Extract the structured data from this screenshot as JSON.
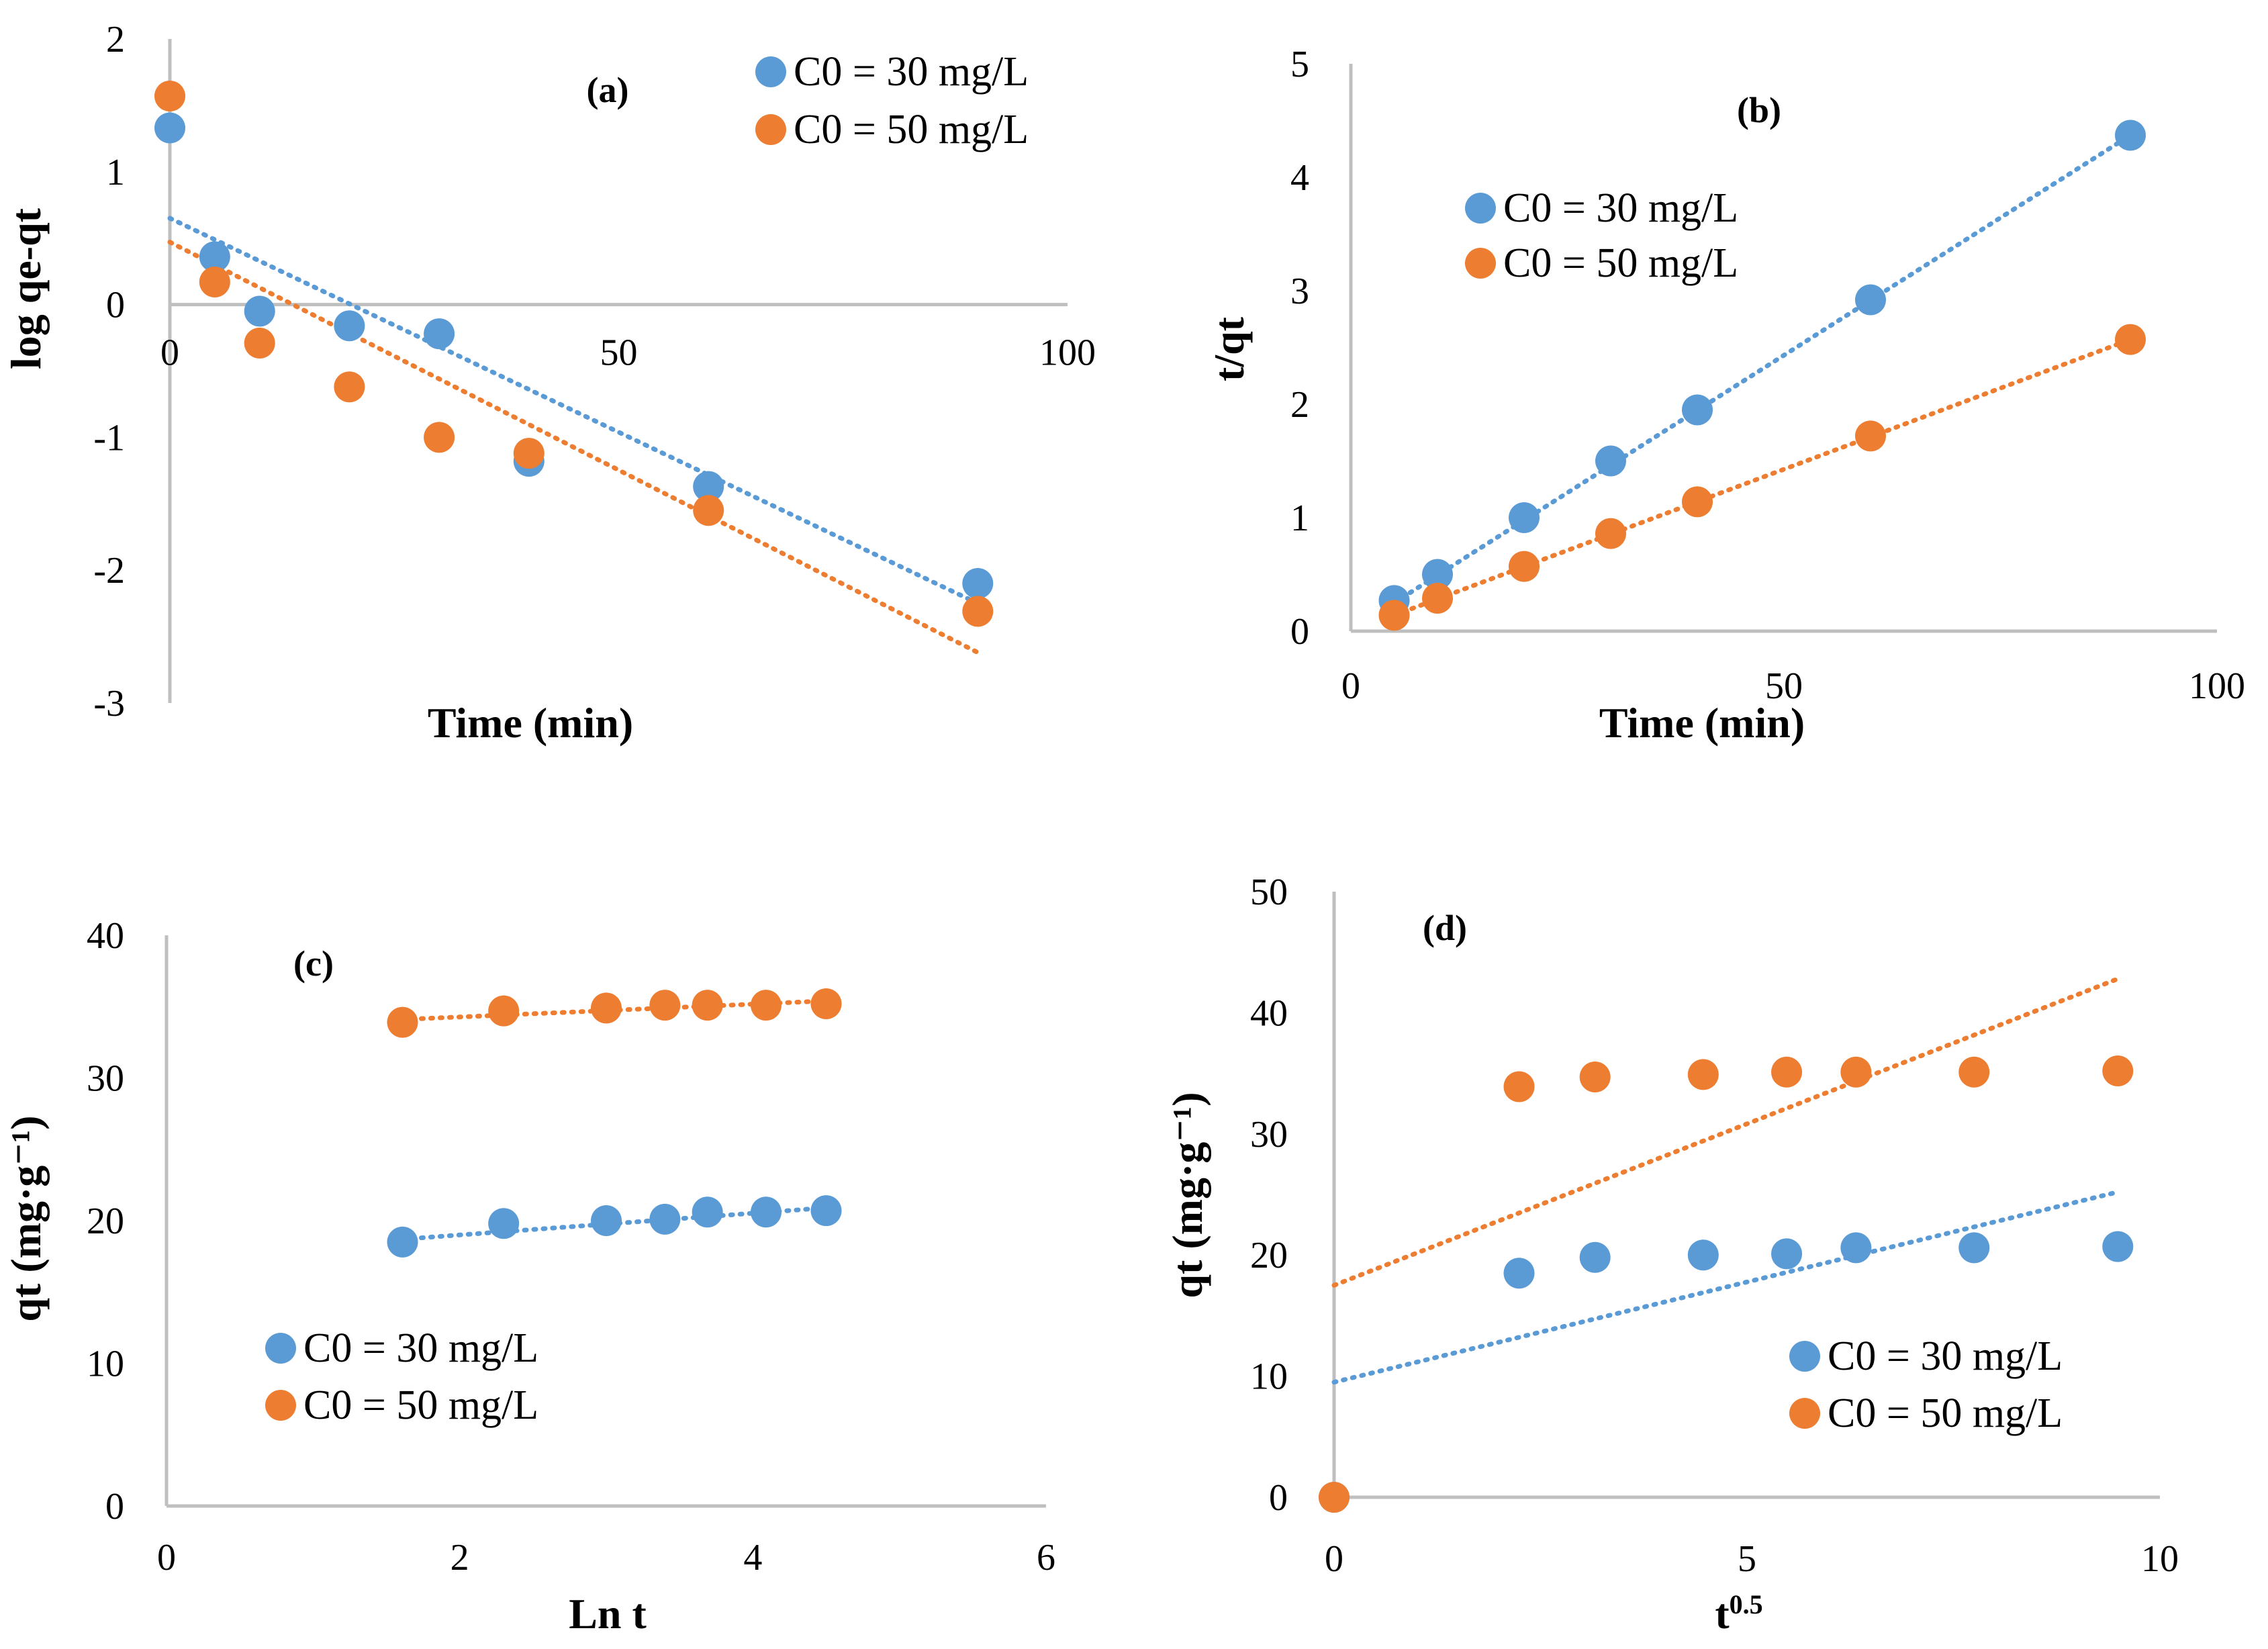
{
  "colors": {
    "series_30": "#5b9bd5",
    "series_50": "#ed7d31",
    "axis": "#bfbfbf",
    "ylabel_paren": "#ff0000"
  },
  "chart_data": [
    {
      "type": "scatter",
      "panel": "(a)",
      "xlabel": "Time (min)",
      "ylabel": "log qe-qt",
      "xlim": [
        0,
        100
      ],
      "ylim": [
        -3,
        2
      ],
      "xticks": [
        "0",
        "50",
        "100"
      ],
      "yticks": [
        "2",
        "1",
        "0",
        "-1",
        "-2",
        "-3"
      ],
      "legend": [
        "C0 = 30 mg/L",
        "C0 = 50 mg/L"
      ],
      "legend_position": "top-right",
      "series": [
        {
          "name": "C0 = 30 mg/L",
          "x": [
            0,
            5,
            10,
            20,
            30,
            40,
            60,
            90
          ],
          "y": [
            1.33,
            0.36,
            -0.05,
            -0.16,
            -0.22,
            -1.18,
            -1.37,
            -2.1
          ],
          "trendline": {
            "x": [
              0,
              90
            ],
            "y": [
              0.65,
              -2.25
            ]
          }
        },
        {
          "name": "C0 = 50 mg/L",
          "x": [
            0,
            5,
            10,
            20,
            30,
            40,
            60,
            90
          ],
          "y": [
            1.57,
            0.17,
            -0.29,
            -0.62,
            -1.0,
            -1.12,
            -1.55,
            -2.31
          ],
          "trendline": {
            "x": [
              0,
              90
            ],
            "y": [
              0.47,
              -2.62
            ]
          }
        }
      ]
    },
    {
      "type": "scatter",
      "panel": "(b)",
      "xlabel": "Time (min)",
      "ylabel": "t/qt",
      "xlim": [
        0,
        100
      ],
      "ylim": [
        0,
        5
      ],
      "xticks": [
        "0",
        "50",
        "100"
      ],
      "yticks": [
        "5",
        "4",
        "3",
        "2",
        "1",
        "0"
      ],
      "legend": [
        "C0 = 30 mg/L",
        "C0 = 50 mg/L"
      ],
      "legend_position": "top-left",
      "series": [
        {
          "name": "C0 = 30 mg/L",
          "x": [
            5,
            10,
            20,
            30,
            40,
            60,
            90
          ],
          "y": [
            0.27,
            0.5,
            1.0,
            1.5,
            1.95,
            2.92,
            4.37
          ],
          "trendline": {
            "x": [
              5,
              90
            ],
            "y": [
              0.25,
              4.37
            ]
          }
        },
        {
          "name": "C0 = 50 mg/L",
          "x": [
            5,
            10,
            20,
            30,
            40,
            60,
            90
          ],
          "y": [
            0.14,
            0.29,
            0.57,
            0.86,
            1.14,
            1.72,
            2.57
          ],
          "trendline": {
            "x": [
              5,
              90
            ],
            "y": [
              0.14,
              2.57
            ]
          }
        }
      ]
    },
    {
      "type": "scatter",
      "panel": "(c)",
      "xlabel": "Ln t",
      "ylabel": "qt (mg·g⁻¹)",
      "xlim": [
        0,
        6
      ],
      "ylim": [
        0,
        40
      ],
      "xticks": [
        "0",
        "2",
        "4",
        "6"
      ],
      "yticks": [
        "40",
        "30",
        "20",
        "10",
        "0"
      ],
      "legend": [
        "C0 = 30 mg/L",
        "C0 = 50 mg/L"
      ],
      "legend_position": "bottom-left",
      "series": [
        {
          "name": "C0 = 30 mg/L",
          "x": [
            1.61,
            2.3,
            3.0,
            3.4,
            3.69,
            4.09,
            4.5
          ],
          "y": [
            18.5,
            19.8,
            20.0,
            20.1,
            20.6,
            20.6,
            20.7
          ],
          "trendline": {
            "x": [
              1.61,
              4.5
            ],
            "y": [
              18.7,
              20.9
            ]
          }
        },
        {
          "name": "C0 = 50 mg/L",
          "x": [
            1.61,
            2.3,
            3.0,
            3.4,
            3.69,
            4.09,
            4.5
          ],
          "y": [
            33.9,
            34.7,
            34.9,
            35.1,
            35.1,
            35.1,
            35.2
          ],
          "trendline": {
            "x": [
              1.61,
              4.5
            ],
            "y": [
              34.1,
              35.4
            ]
          }
        }
      ]
    },
    {
      "type": "scatter",
      "panel": "(d)",
      "xlabel": "t",
      "xlabel_superscript": "0.5",
      "ylabel": "qt (mg·g⁻¹)",
      "xlim": [
        0,
        10
      ],
      "ylim": [
        0,
        50
      ],
      "xticks": [
        "0",
        "5",
        "10"
      ],
      "yticks": [
        "50",
        "40",
        "30",
        "20",
        "10",
        "0"
      ],
      "legend": [
        "C0 = 30 mg/L",
        "C0 = 50 mg/L"
      ],
      "legend_position": "bottom-right",
      "series": [
        {
          "name": "C0 = 30 mg/L",
          "x": [
            0,
            2.24,
            3.16,
            4.47,
            5.48,
            6.32,
            7.75,
            9.49
          ],
          "y": [
            0,
            18.5,
            19.8,
            20.0,
            20.1,
            20.6,
            20.6,
            20.7
          ],
          "trendline": {
            "x": [
              0,
              9.49
            ],
            "y": [
              9.5,
              25.2
            ]
          }
        },
        {
          "name": "C0 = 50 mg/L",
          "x": [
            0,
            2.24,
            3.16,
            4.47,
            5.48,
            6.32,
            7.75,
            9.49
          ],
          "y": [
            0,
            33.9,
            34.7,
            34.9,
            35.1,
            35.1,
            35.1,
            35.2
          ],
          "trendline": {
            "x": [
              0,
              9.49
            ],
            "y": [
              17.5,
              42.8
            ]
          }
        }
      ]
    }
  ]
}
